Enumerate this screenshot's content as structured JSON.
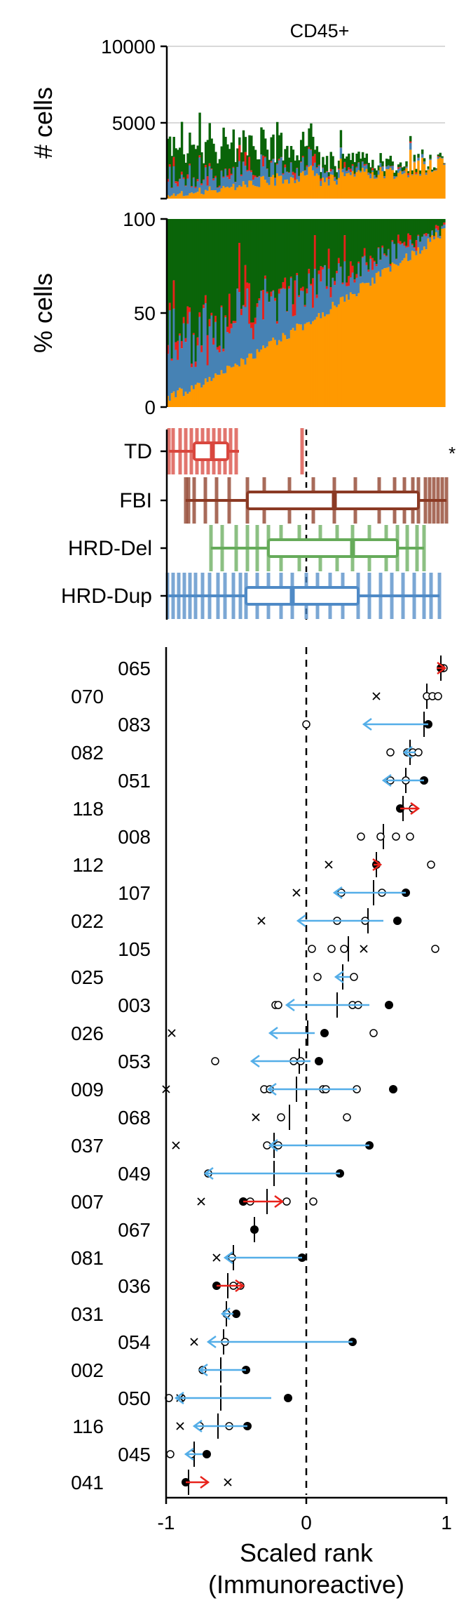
{
  "title": "CD45+",
  "colors": {
    "orange": "#ff9900",
    "blue": "#4682b4",
    "red": "#e8221b",
    "green": "#0a6409",
    "td": "#d9473e",
    "fbi": "#8b3a24",
    "hrddel": "#66ab5a",
    "hrddup": "#4f8ac6",
    "arrow_blue": "#54aee8",
    "arrow_red": "#e8221b"
  },
  "chart_data": [
    {
      "type": "bar",
      "stacked": true,
      "name": "counts",
      "ylabel": "# cells",
      "ylim": [
        0,
        10000
      ],
      "yticks": [
        5000,
        10000
      ],
      "grid": true,
      "stack_order": [
        "orange",
        "blue",
        "red",
        "green"
      ],
      "n_samples": 140
    },
    {
      "type": "bar",
      "stacked": true,
      "name": "percent",
      "ylabel": "% cells",
      "ylim": [
        0,
        100
      ],
      "yticks": [
        0,
        50,
        100
      ],
      "stack_order": [
        "orange",
        "blue",
        "red",
        "green"
      ]
    },
    {
      "type": "box",
      "name": "groups",
      "categories": [
        "TD",
        "FBI",
        "HRD-Del",
        "HRD-Dup"
      ],
      "xlim": [
        -1,
        1
      ],
      "boxes": [
        {
          "group": "TD",
          "whisker_low": -0.98,
          "q1": -0.8,
          "median": -0.67,
          "q3": -0.56,
          "whisker_high": -0.48,
          "points": [
            -0.98,
            -0.95,
            -0.9,
            -0.86,
            -0.82,
            -0.78,
            -0.74,
            -0.7,
            -0.66,
            -0.62,
            -0.58,
            -0.54,
            -0.5,
            -0.03
          ]
        },
        {
          "group": "FBI",
          "whisker_low": -0.86,
          "q1": -0.42,
          "median": 0.2,
          "q3": 0.8,
          "whisker_high": 1.0,
          "points": [
            -0.86,
            -0.84,
            -0.8,
            -0.72,
            -0.64,
            -0.55,
            -0.42,
            -0.3,
            -0.12,
            0.05,
            0.2,
            0.35,
            0.52,
            0.63,
            0.7,
            0.76,
            0.8,
            0.85,
            0.88,
            0.91,
            0.94,
            0.97,
            1.0
          ]
        },
        {
          "group": "HRD-Del",
          "whisker_low": -0.68,
          "q1": -0.27,
          "median": 0.33,
          "q3": 0.65,
          "whisker_high": 0.84,
          "points": [
            -0.68,
            -0.6,
            -0.5,
            -0.42,
            -0.35,
            -0.27,
            -0.18,
            -0.05,
            0.1,
            0.22,
            0.33,
            0.45,
            0.57,
            0.65,
            0.72,
            0.79,
            0.84
          ]
        },
        {
          "group": "HRD-Dup",
          "whisker_low": -0.99,
          "q1": -0.43,
          "median": -0.1,
          "q3": 0.37,
          "whisker_high": 0.95,
          "points": [
            -0.99,
            -0.95,
            -0.91,
            -0.87,
            -0.83,
            -0.79,
            -0.74,
            -0.69,
            -0.63,
            -0.58,
            -0.52,
            -0.47,
            -0.43,
            -0.35,
            -0.27,
            -0.18,
            -0.1,
            0.0,
            0.08,
            0.17,
            0.26,
            0.37,
            0.45,
            0.53,
            0.61,
            0.69,
            0.77,
            0.84,
            0.89,
            0.95
          ]
        }
      ],
      "annotation": "*"
    },
    {
      "type": "scatter",
      "name": "ranks",
      "xlabel": "Scaled rank",
      "xlabel2": "(Immunoreactive)",
      "xlim": [
        -1,
        1
      ],
      "xticks": [
        -1,
        0,
        1
      ],
      "ref_line_x": 0,
      "samples": [
        {
          "id": "065",
          "col": 1,
          "median": 0.96,
          "solid": 0.96,
          "open": [
            0.97,
            0.98
          ],
          "cross": null,
          "arrow": "red",
          "arrow_from": 0.93,
          "arrow_to": 0.99
        },
        {
          "id": "070",
          "col": 0,
          "median": 0.86,
          "solid": null,
          "open": [
            0.86,
            0.9,
            0.94
          ],
          "cross": 0.5,
          "arrow": null
        },
        {
          "id": "083",
          "col": 1,
          "median": 0.84,
          "solid": 0.87,
          "open": [
            0.0
          ],
          "cross": null,
          "arrow": "blue",
          "arrow_from": 0.87,
          "arrow_to": 0.41
        },
        {
          "id": "082",
          "col": 0,
          "median": 0.74,
          "solid": null,
          "open": [
            0.6,
            0.72,
            0.76,
            0.8
          ],
          "cross": null,
          "arrow": "blue",
          "arrow_from": 0.78,
          "arrow_to": 0.7
        },
        {
          "id": "051",
          "col": 1,
          "median": 0.71,
          "solid": 0.84,
          "open": [
            0.6,
            0.71
          ],
          "cross": null,
          "arrow": "blue",
          "arrow_from": 0.84,
          "arrow_to": 0.55
        },
        {
          "id": "118",
          "col": 0,
          "median": 0.69,
          "solid": 0.67,
          "open": [
            0.76
          ],
          "cross": null,
          "arrow": "red",
          "arrow_from": 0.67,
          "arrow_to": 0.8
        },
        {
          "id": "008",
          "col": 1,
          "median": 0.55,
          "solid": null,
          "open": [
            0.39,
            0.53,
            0.64,
            0.74
          ],
          "cross": null,
          "arrow": null
        },
        {
          "id": "112",
          "col": 0,
          "median": 0.5,
          "solid": 0.5,
          "open": [
            0.89
          ],
          "cross": 0.16,
          "arrow": "red",
          "arrow_from": 0.48,
          "arrow_to": 0.53
        },
        {
          "id": "107",
          "col": 1,
          "median": 0.48,
          "solid": 0.71,
          "open": [
            0.25,
            0.54
          ],
          "cross": -0.07,
          "arrow": "blue",
          "arrow_from": 0.71,
          "arrow_to": 0.2
        },
        {
          "id": "022",
          "col": 0,
          "median": 0.44,
          "solid": 0.65,
          "open": [
            0.22,
            0.42
          ],
          "cross": -0.32,
          "arrow": "blue",
          "arrow_from": 0.55,
          "arrow_to": -0.06
        },
        {
          "id": "105",
          "col": 1,
          "median": 0.3,
          "solid": null,
          "open": [
            0.04,
            0.18,
            0.27,
            0.92
          ],
          "cross": 0.41,
          "arrow": null
        },
        {
          "id": "025",
          "col": 0,
          "median": 0.26,
          "solid": null,
          "open": [
            0.08,
            0.34
          ],
          "cross": null,
          "arrow": "blue",
          "arrow_from": 0.31,
          "arrow_to": 0.21
        },
        {
          "id": "003",
          "col": 1,
          "median": 0.22,
          "solid": 0.59,
          "open": [
            -0.22,
            -0.2,
            0.33,
            0.37
          ],
          "cross": null,
          "arrow": "blue",
          "arrow_from": 0.45,
          "arrow_to": -0.14
        },
        {
          "id": "026",
          "col": 0,
          "median": 0.01,
          "solid": 0.13,
          "open": [
            0.48
          ],
          "cross": -0.96,
          "arrow": "blue",
          "arrow_from": 0.06,
          "arrow_to": -0.26
        },
        {
          "id": "053",
          "col": 1,
          "median": -0.05,
          "solid": 0.09,
          "open": [
            -0.65,
            -0.09,
            -0.04
          ],
          "cross": null,
          "arrow": "blue",
          "arrow_from": 0.03,
          "arrow_to": -0.39
        },
        {
          "id": "009",
          "col": 0,
          "median": -0.07,
          "solid": 0.62,
          "open": [
            -0.3,
            -0.26,
            0.12,
            0.14,
            0.36
          ],
          "cross": -1.0,
          "arrow": "blue",
          "arrow_from": 0.36,
          "arrow_to": -0.27
        },
        {
          "id": "068",
          "col": 1,
          "median": -0.12,
          "solid": null,
          "open": [
            -0.18,
            0.29
          ],
          "cross": -0.36,
          "arrow": null
        },
        {
          "id": "037",
          "col": 0,
          "median": -0.23,
          "solid": 0.45,
          "open": [
            -0.28,
            -0.2
          ],
          "cross": -0.93,
          "arrow": "blue",
          "arrow_from": 0.45,
          "arrow_to": -0.26
        },
        {
          "id": "049",
          "col": 1,
          "median": -0.23,
          "solid": 0.24,
          "open": [
            -0.7
          ],
          "cross": null,
          "arrow": "blue",
          "arrow_from": 0.24,
          "arrow_to": -0.72
        },
        {
          "id": "007",
          "col": 0,
          "median": -0.28,
          "solid": -0.45,
          "open": [
            -0.4,
            -0.14,
            0.05
          ],
          "cross": -0.75,
          "arrow": "red",
          "arrow_from": -0.45,
          "arrow_to": -0.17
        },
        {
          "id": "067",
          "col": 1,
          "median": -0.37,
          "solid": -0.37,
          "open": [],
          "cross": null,
          "arrow": null
        },
        {
          "id": "081",
          "col": 0,
          "median": -0.52,
          "solid": -0.03,
          "open": [
            -0.53
          ],
          "cross": -0.64,
          "arrow": "blue",
          "arrow_from": -0.03,
          "arrow_to": -0.58
        },
        {
          "id": "036",
          "col": 1,
          "median": -0.56,
          "solid": -0.64,
          "open": [
            -0.52,
            -0.47
          ],
          "cross": null,
          "arrow": "red",
          "arrow_from": -0.64,
          "arrow_to": -0.45
        },
        {
          "id": "031",
          "col": 0,
          "median": -0.57,
          "solid": -0.5,
          "open": [
            -0.57
          ],
          "cross": null,
          "arrow": "blue",
          "arrow_from": -0.52,
          "arrow_to": -0.6
        },
        {
          "id": "054",
          "col": 1,
          "median": -0.59,
          "solid": 0.33,
          "open": [
            -0.58
          ],
          "cross": -0.8,
          "arrow": "blue",
          "arrow_from": 0.33,
          "arrow_to": -0.7
        },
        {
          "id": "002",
          "col": 0,
          "median": -0.61,
          "solid": -0.43,
          "open": [
            -0.74
          ],
          "cross": null,
          "arrow": "blue",
          "arrow_from": -0.43,
          "arrow_to": -0.76
        },
        {
          "id": "050",
          "col": 1,
          "median": -0.61,
          "solid": -0.13,
          "open": [
            -0.98,
            -0.89
          ],
          "cross": -0.9,
          "arrow": "blue",
          "arrow_from": -0.25,
          "arrow_to": -0.93
        },
        {
          "id": "116",
          "col": 0,
          "median": -0.63,
          "solid": -0.42,
          "open": [
            -0.76,
            -0.55
          ],
          "cross": -0.9,
          "arrow": "blue",
          "arrow_from": -0.42,
          "arrow_to": -0.8
        },
        {
          "id": "045",
          "col": 1,
          "median": -0.8,
          "solid": -0.71,
          "open": [
            -0.97,
            -0.82
          ],
          "cross": null,
          "arrow": "blue",
          "arrow_from": -0.74,
          "arrow_to": -0.86
        },
        {
          "id": "041",
          "col": 0,
          "median": -0.84,
          "solid": -0.86,
          "open": [],
          "cross": -0.56,
          "arrow": "red",
          "arrow_from": -0.86,
          "arrow_to": -0.7
        }
      ]
    }
  ]
}
